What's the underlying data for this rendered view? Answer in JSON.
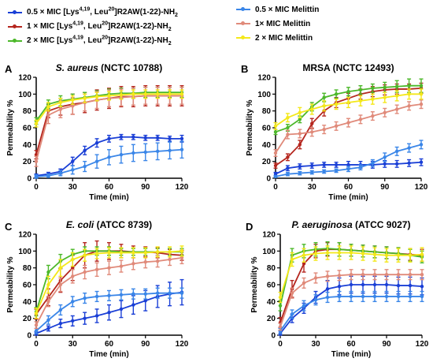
{
  "legend": [
    {
      "id": "l1",
      "html": "0.5 × MIC [Lys<sup>4,19</sup>, Leu<sup>20</sup>]R2AW(1-22)-NH<sub>2</sub>",
      "color": "#1a3fd6"
    },
    {
      "id": "l2",
      "html": "1 × MIC [Lys<sup>4,19</sup>, Leu<sup>20</sup>]R2AW(1-22)-NH<sub>2</sub>",
      "color": "#b5261e"
    },
    {
      "id": "l3",
      "html": "2 × MIC [Lys<sup>4,19</sup>, Leu<sup>20</sup>]R2AW(1-22)-NH<sub>2</sub>",
      "color": "#4cb82a"
    },
    {
      "id": "l4",
      "html": "0.5 × MIC Melittin",
      "color": "#3a86e8"
    },
    {
      "id": "l5",
      "html": "1× MIC Melittin",
      "color": "#e08a7a"
    },
    {
      "id": "l6",
      "html": "2 × MIC Melittin",
      "color": "#f4e81a"
    }
  ],
  "legend_text": {
    "l1": "0.5 × MIC [Lys4,19, Leu20]R2AW(1-22)-NH2",
    "l2": "1 × MIC [Lys4,19, Leu20]R2AW(1-22)-NH2",
    "l3": "2 × MIC [Lys4,19, Leu20]R2AW(1-22)-NH2",
    "l4": "0.5 × MIC Melittin",
    "l5": "1× MIC Melittin",
    "l6": "2 × MIC Melittin"
  },
  "chart_data": [
    {
      "type": "line",
      "letter": "A",
      "title_italic": "S. aureus",
      "title_rest": " (NCTC 10788)",
      "xlabel": "Time (min)",
      "ylabel": "Permeability %",
      "xlim": [
        0,
        120
      ],
      "ylim": [
        0,
        120
      ],
      "xticks": [
        0,
        30,
        60,
        90,
        120
      ],
      "yticks": [
        0,
        20,
        40,
        60,
        80,
        100,
        120
      ],
      "x": [
        0,
        10,
        20,
        30,
        40,
        50,
        60,
        70,
        80,
        90,
        100,
        110,
        120
      ],
      "series": [
        {
          "key": "l1",
          "color": "#1a3fd6",
          "values": [
            3,
            5,
            8,
            20,
            33,
            42,
            47,
            49,
            49,
            48,
            48,
            47,
            47
          ],
          "err": [
            2,
            2,
            3,
            5,
            5,
            5,
            4,
            3,
            3,
            3,
            3,
            3,
            4
          ]
        },
        {
          "key": "l2",
          "color": "#b5261e",
          "values": [
            28,
            80,
            85,
            88,
            90,
            93,
            95,
            97,
            97,
            98,
            98,
            98,
            98
          ],
          "err": [
            5,
            8,
            10,
            12,
            12,
            12,
            12,
            12,
            12,
            12,
            12,
            12,
            12
          ]
        },
        {
          "key": "l3",
          "color": "#4cb82a",
          "values": [
            68,
            88,
            92,
            94,
            96,
            98,
            100,
            101,
            101,
            102,
            102,
            102,
            102
          ],
          "err": [
            4,
            5,
            6,
            6,
            6,
            6,
            6,
            6,
            6,
            6,
            6,
            6,
            6
          ]
        },
        {
          "key": "l4",
          "color": "#3a86e8",
          "values": [
            2,
            3,
            6,
            10,
            14,
            20,
            25,
            28,
            30,
            31,
            32,
            33,
            34
          ],
          "err": [
            2,
            2,
            3,
            5,
            6,
            8,
            9,
            10,
            10,
            10,
            10,
            10,
            10
          ]
        },
        {
          "key": "l5",
          "color": "#e08a7a",
          "values": [
            20,
            75,
            82,
            86,
            90,
            93,
            95,
            96,
            97,
            98,
            98,
            98,
            98
          ],
          "err": [
            6,
            10,
            10,
            10,
            10,
            10,
            10,
            10,
            10,
            10,
            10,
            10,
            10
          ]
        },
        {
          "key": "l6",
          "color": "#f4e81a",
          "values": [
            65,
            85,
            90,
            93,
            95,
            97,
            98,
            99,
            100,
            100,
            100,
            100,
            100
          ],
          "err": [
            4,
            5,
            5,
            5,
            5,
            5,
            5,
            5,
            5,
            5,
            5,
            5,
            5
          ]
        }
      ]
    },
    {
      "type": "line",
      "letter": "B",
      "title_italic": "",
      "title_rest": "MRSA (NCTC 12493)",
      "xlabel": "Time (min)",
      "ylabel": "Permeability %",
      "xlim": [
        0,
        120
      ],
      "ylim": [
        0,
        120
      ],
      "xticks": [
        0,
        30,
        60,
        90,
        120
      ],
      "yticks": [
        0,
        20,
        40,
        60,
        80,
        100,
        120
      ],
      "x": [
        0,
        10,
        20,
        30,
        40,
        50,
        60,
        70,
        80,
        90,
        100,
        110,
        120
      ],
      "series": [
        {
          "key": "l1",
          "color": "#1a3fd6",
          "values": [
            5,
            12,
            14,
            15,
            16,
            16,
            16,
            16,
            16,
            17,
            17,
            18,
            19
          ],
          "err": [
            2,
            3,
            3,
            3,
            3,
            3,
            4,
            4,
            4,
            4,
            4,
            4,
            4
          ]
        },
        {
          "key": "l2",
          "color": "#b5261e",
          "values": [
            15,
            25,
            40,
            65,
            80,
            90,
            95,
            100,
            103,
            105,
            106,
            106,
            107
          ],
          "err": [
            3,
            4,
            5,
            6,
            6,
            6,
            6,
            6,
            6,
            6,
            6,
            6,
            6
          ]
        },
        {
          "key": "l3",
          "color": "#4cb82a",
          "values": [
            55,
            60,
            70,
            85,
            96,
            100,
            103,
            105,
            107,
            108,
            109,
            110,
            110
          ],
          "err": [
            3,
            4,
            4,
            5,
            5,
            5,
            5,
            5,
            5,
            6,
            7,
            8,
            8
          ]
        },
        {
          "key": "l4",
          "color": "#3a86e8",
          "values": [
            2,
            5,
            6,
            7,
            8,
            9,
            11,
            13,
            18,
            25,
            32,
            36,
            40
          ],
          "err": [
            1,
            2,
            2,
            2,
            2,
            2,
            3,
            3,
            4,
            5,
            5,
            5,
            5
          ]
        },
        {
          "key": "l5",
          "color": "#e08a7a",
          "values": [
            30,
            52,
            53,
            55,
            58,
            62,
            66,
            70,
            74,
            78,
            82,
            86,
            88
          ],
          "err": [
            4,
            5,
            5,
            5,
            5,
            5,
            5,
            5,
            5,
            5,
            5,
            5,
            5
          ]
        },
        {
          "key": "l6",
          "color": "#f4e81a",
          "values": [
            62,
            72,
            78,
            82,
            86,
            88,
            90,
            92,
            94,
            96,
            98,
            100,
            100
          ],
          "err": [
            4,
            5,
            6,
            6,
            6,
            6,
            6,
            6,
            6,
            6,
            6,
            6,
            6
          ]
        }
      ]
    },
    {
      "type": "line",
      "letter": "C",
      "title_italic": "E. coli",
      "title_rest": " (ATCC 8739)",
      "xlabel": "Time (min)",
      "ylabel": "Permeability %",
      "xlim": [
        0,
        120
      ],
      "ylim": [
        0,
        120
      ],
      "xticks": [
        0,
        30,
        60,
        90,
        120
      ],
      "yticks": [
        0,
        20,
        40,
        60,
        80,
        100,
        120
      ],
      "x": [
        0,
        10,
        20,
        30,
        40,
        50,
        60,
        70,
        80,
        90,
        100,
        110,
        120
      ],
      "series": [
        {
          "key": "l1",
          "color": "#1a3fd6",
          "values": [
            2,
            8,
            14,
            17,
            20,
            23,
            27,
            31,
            36,
            41,
            46,
            49,
            51
          ],
          "err": [
            2,
            3,
            5,
            6,
            7,
            8,
            9,
            10,
            11,
            12,
            13,
            14,
            15
          ]
        },
        {
          "key": "l2",
          "color": "#b5261e",
          "values": [
            25,
            45,
            65,
            80,
            95,
            100,
            100,
            100,
            99,
            99,
            98,
            96,
            95
          ],
          "err": [
            6,
            10,
            14,
            15,
            15,
            12,
            10,
            8,
            7,
            6,
            6,
            6,
            6
          ]
        },
        {
          "key": "l3",
          "color": "#4cb82a",
          "values": [
            28,
            75,
            88,
            96,
            100,
            100,
            100,
            99,
            99,
            99,
            99,
            99,
            99
          ],
          "err": [
            5,
            8,
            8,
            6,
            5,
            5,
            5,
            4,
            4,
            4,
            4,
            4,
            4
          ]
        },
        {
          "key": "l4",
          "color": "#3a86e8",
          "values": [
            5,
            18,
            30,
            40,
            44,
            46,
            47,
            48,
            49,
            49,
            50,
            50,
            50
          ],
          "err": [
            3,
            5,
            6,
            6,
            6,
            6,
            6,
            6,
            6,
            6,
            6,
            6,
            6
          ]
        },
        {
          "key": "l5",
          "color": "#e08a7a",
          "values": [
            12,
            40,
            60,
            70,
            75,
            78,
            80,
            82,
            85,
            87,
            88,
            90,
            92
          ],
          "err": [
            4,
            6,
            8,
            8,
            8,
            8,
            8,
            7,
            7,
            7,
            7,
            7,
            7
          ]
        },
        {
          "key": "l6",
          "color": "#f4e81a",
          "values": [
            26,
            60,
            80,
            90,
            95,
            97,
            98,
            98,
            98,
            98,
            99,
            99,
            100
          ],
          "err": [
            6,
            10,
            10,
            8,
            7,
            6,
            6,
            6,
            6,
            6,
            6,
            6,
            6
          ]
        }
      ]
    },
    {
      "type": "line",
      "letter": "D",
      "title_italic": "P. aeruginosa",
      "title_rest": " (ATCC 9027)",
      "xlabel": "Time (min)",
      "ylabel": "Permeability %",
      "xlim": [
        0,
        120
      ],
      "ylim": [
        0,
        120
      ],
      "xticks": [
        0,
        30,
        60,
        90,
        120
      ],
      "yticks": [
        0,
        20,
        40,
        60,
        80,
        100,
        120
      ],
      "x": [
        0,
        10,
        20,
        30,
        40,
        50,
        60,
        70,
        80,
        90,
        100,
        110,
        120
      ],
      "series": [
        {
          "key": "l1",
          "color": "#1a3fd6",
          "values": [
            2,
            20,
            32,
            45,
            55,
            58,
            60,
            60,
            60,
            60,
            59,
            59,
            58
          ],
          "err": [
            3,
            5,
            6,
            7,
            10,
            10,
            10,
            10,
            10,
            10,
            10,
            10,
            10
          ]
        },
        {
          "key": "l2",
          "color": "#b5261e",
          "values": [
            15,
            55,
            85,
            100,
            102,
            102,
            101,
            100,
            99,
            98,
            97,
            96,
            95
          ],
          "err": [
            6,
            10,
            10,
            8,
            8,
            8,
            7,
            7,
            7,
            7,
            7,
            7,
            7
          ]
        },
        {
          "key": "l3",
          "color": "#4cb82a",
          "values": [
            35,
            95,
            100,
            102,
            103,
            102,
            101,
            100,
            99,
            98,
            97,
            95,
            93
          ],
          "err": [
            6,
            8,
            8,
            8,
            8,
            8,
            7,
            7,
            7,
            7,
            7,
            7,
            7
          ]
        },
        {
          "key": "l4",
          "color": "#3a86e8",
          "values": [
            5,
            25,
            35,
            42,
            45,
            46,
            46,
            46,
            46,
            46,
            46,
            46,
            46
          ],
          "err": [
            3,
            5,
            6,
            6,
            6,
            6,
            6,
            6,
            6,
            6,
            6,
            6,
            6
          ]
        },
        {
          "key": "l5",
          "color": "#e08a7a",
          "values": [
            10,
            50,
            62,
            68,
            70,
            71,
            72,
            72,
            72,
            72,
            72,
            72,
            72
          ],
          "err": [
            4,
            6,
            6,
            6,
            6,
            6,
            6,
            6,
            6,
            6,
            6,
            6,
            6
          ]
        },
        {
          "key": "l6",
          "color": "#f4e81a",
          "values": [
            45,
            90,
            95,
            97,
            98,
            98,
            98,
            97,
            96,
            95,
            95,
            95,
            96
          ],
          "err": [
            6,
            8,
            8,
            8,
            8,
            8,
            8,
            8,
            8,
            8,
            8,
            8,
            8
          ]
        }
      ]
    }
  ]
}
